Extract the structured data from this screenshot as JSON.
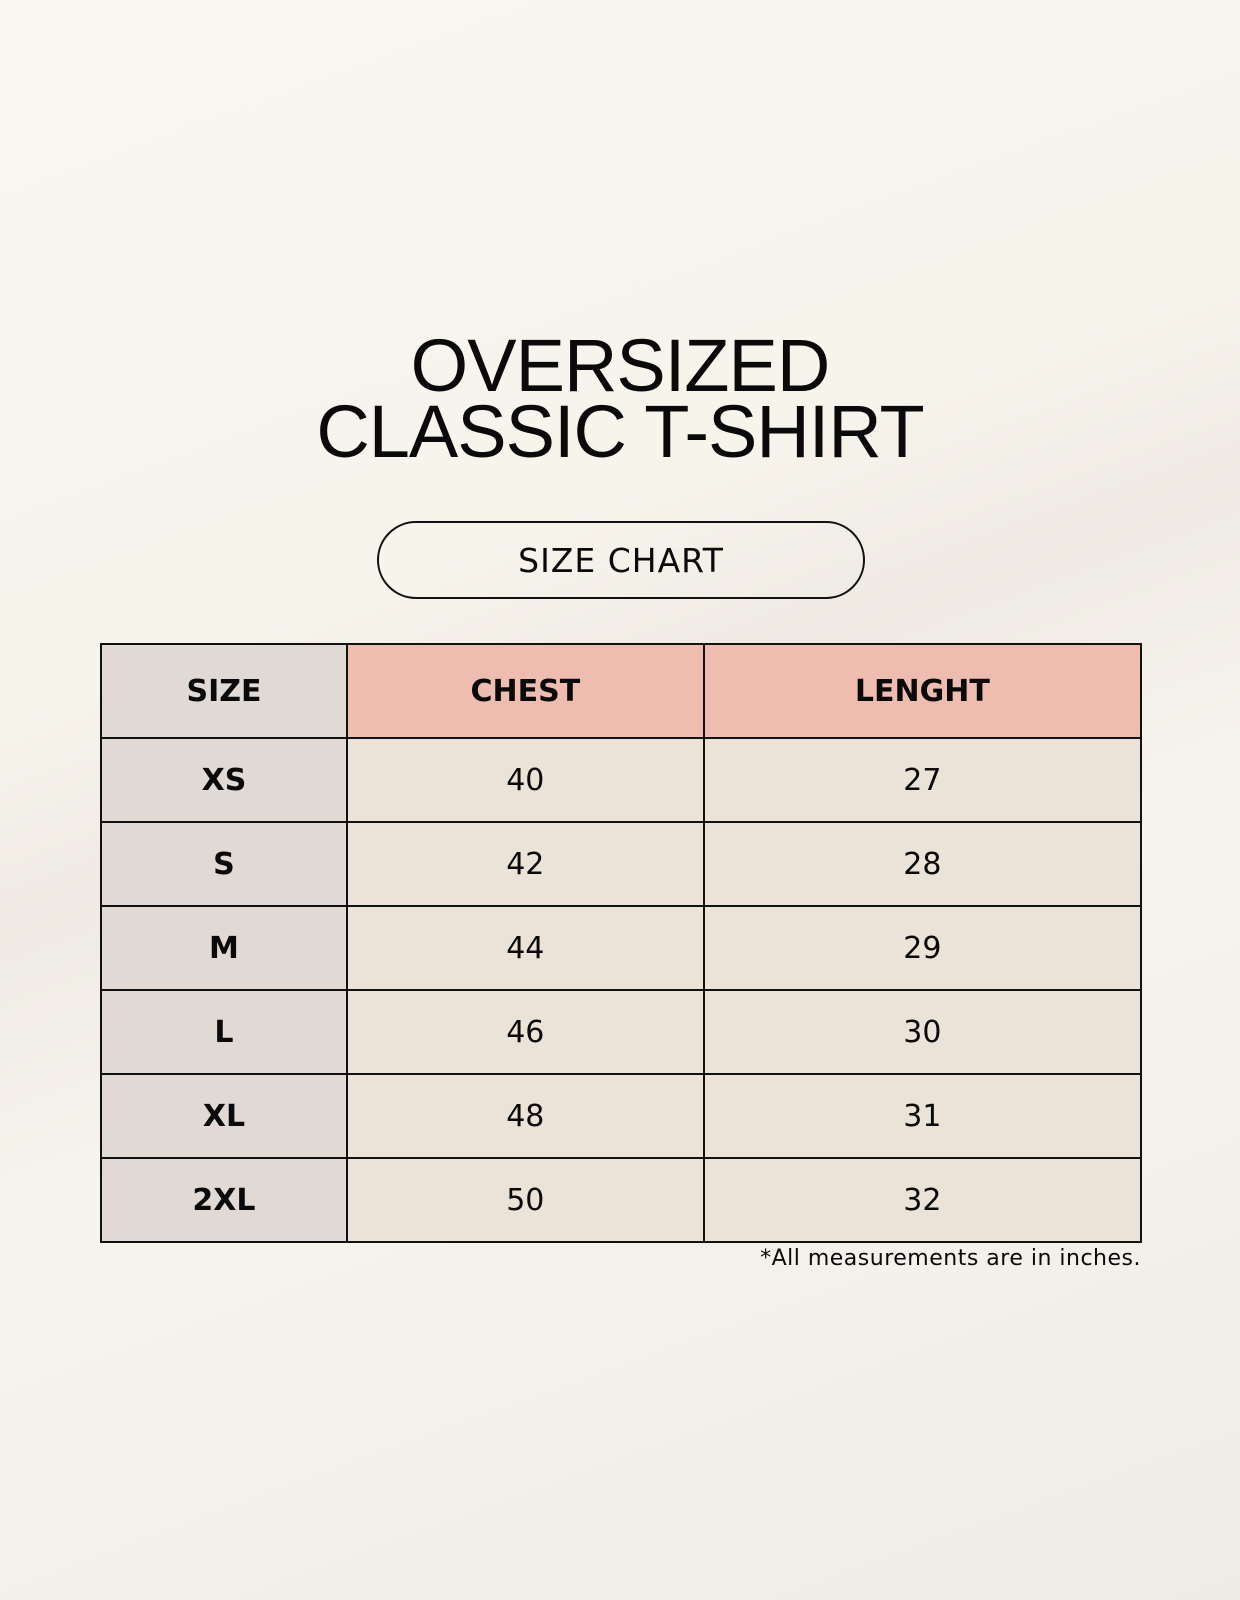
{
  "title_line1": "OVERSIZED",
  "title_line2": "CLASSIC T-SHIRT",
  "badge": "SIZE CHART",
  "table": {
    "headers": [
      "SIZE",
      "CHEST",
      "LENGHT"
    ],
    "rows": [
      [
        "XS",
        "40",
        "27"
      ],
      [
        "S",
        "42",
        "28"
      ],
      [
        "M",
        "44",
        "29"
      ],
      [
        "L",
        "46",
        "30"
      ],
      [
        "XL",
        "48",
        "31"
      ],
      [
        "2XL",
        "50",
        "32"
      ]
    ]
  },
  "note": "*All measurements are in inches.",
  "colors": {
    "header_accent": "#efbdaf",
    "size_column": "#e1d9d3",
    "cell": "#ebe3d8"
  }
}
